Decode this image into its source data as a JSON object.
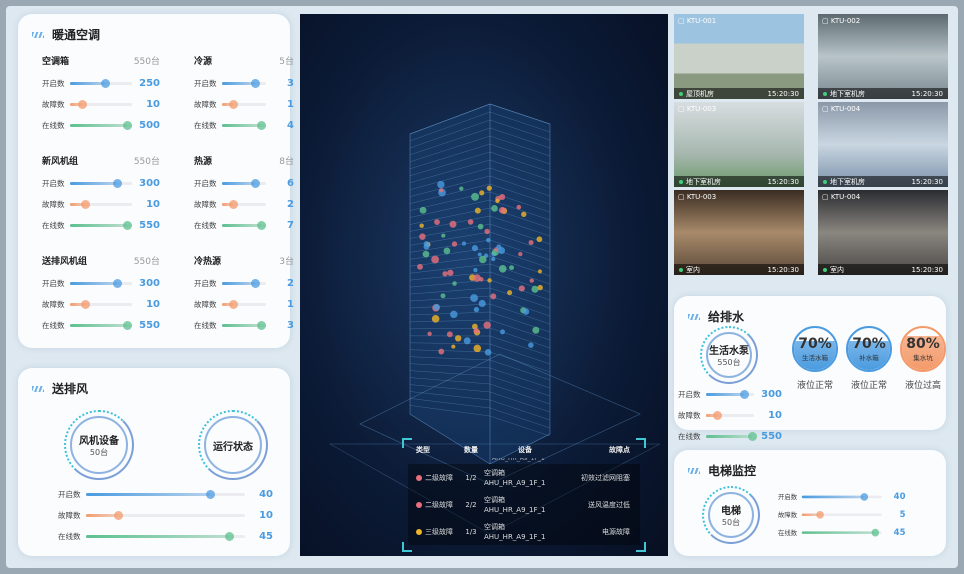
{
  "hvac": {
    "title": "暖通空调",
    "groups": [
      {
        "name": "空调箱",
        "total": "550台",
        "rows": [
          [
            "开启数",
            "250",
            0.57
          ],
          [
            "故障数",
            "10",
            0.2
          ],
          [
            "在线数",
            "500",
            0.92
          ]
        ]
      },
      {
        "name": "冷源",
        "total": "5台",
        "rows": [
          [
            "开启数",
            "3",
            0.75
          ],
          [
            "故障数",
            "1",
            0.24
          ],
          [
            "在线数",
            "4",
            0.88
          ]
        ]
      },
      {
        "name": "新风机组",
        "total": "550台",
        "rows": [
          [
            "开启数",
            "300",
            0.75
          ],
          [
            "故障数",
            "10",
            0.24
          ],
          [
            "在线数",
            "550",
            0.92
          ]
        ]
      },
      {
        "name": "热源",
        "total": "8台",
        "rows": [
          [
            "开启数",
            "6",
            0.75
          ],
          [
            "故障数",
            "2",
            0.24
          ],
          [
            "在线数",
            "7",
            0.88
          ]
        ]
      },
      {
        "name": "送排风机组",
        "total": "550台",
        "rows": [
          [
            "开启数",
            "300",
            0.75
          ],
          [
            "故障数",
            "10",
            0.24
          ],
          [
            "在线数",
            "550",
            0.92
          ]
        ]
      },
      {
        "name": "冷热源",
        "total": "3台",
        "rows": [
          [
            "开启数",
            "2",
            0.75
          ],
          [
            "故障数",
            "1",
            0.24
          ],
          [
            "在线数",
            "3",
            0.88
          ]
        ]
      }
    ]
  },
  "ventilation": {
    "title": "送排风",
    "ring1": {
      "name": "风机设备",
      "count": "50台"
    },
    "ring2": {
      "name": "运行状态"
    },
    "rows": [
      [
        "开启数",
        "40",
        0.78
      ],
      [
        "故障数",
        "10",
        0.2
      ],
      [
        "在线数",
        "45",
        0.9
      ]
    ]
  },
  "fault_table": {
    "headers": [
      "类型",
      "数量",
      "设备",
      "故障点"
    ],
    "clipped_row": "AHU_HR_A9_1F_1",
    "rows": [
      {
        "type": "二级故障",
        "color": "#e8707c",
        "count": "1/2",
        "device": "空调箱",
        "code": "AHU_HR_A9_1F_1",
        "point": "初效过滤网阻塞"
      },
      {
        "type": "二级故障",
        "color": "#e8707c",
        "count": "2/2",
        "device": "空调箱",
        "code": "AHU_HR_A9_1F_1",
        "point": "送风温度过低"
      },
      {
        "type": "三级故障",
        "color": "#f0b429",
        "count": "1/3",
        "device": "空调箱",
        "code": "AHU_HR_A9_1F_1",
        "point": "电源故障"
      }
    ]
  },
  "cameras": [
    {
      "id": "KTU-001",
      "location": "屋顶机房",
      "time": "15:20:30"
    },
    {
      "id": "KTU-002",
      "location": "地下室机房",
      "time": "15:20:30"
    },
    {
      "id": "KTU-003",
      "location": "地下室机房",
      "time": "15:20:30"
    },
    {
      "id": "KTU-004",
      "location": "地下室机房",
      "time": "15:20:30"
    },
    {
      "id": "KTU-003",
      "location": "室内",
      "time": "15:20:30"
    },
    {
      "id": "KTU-004",
      "location": "室内",
      "time": "15:20:30"
    }
  ],
  "water": {
    "title": "给排水",
    "ring": {
      "name": "生活水泵",
      "count": "550台"
    },
    "rows": [
      [
        "开启数",
        "300",
        0.8
      ],
      [
        "故障数",
        "10",
        0.22
      ],
      [
        "在线数",
        "550",
        0.95
      ]
    ],
    "tanks": [
      {
        "pct": "70%",
        "level": 0.7,
        "name": "生活水箱",
        "status": "液位正常",
        "color": "#4a9be0"
      },
      {
        "pct": "70%",
        "level": 0.7,
        "name": "补水箱",
        "status": "液位正常",
        "color": "#4a9be0"
      },
      {
        "pct": "80%",
        "level": 0.8,
        "name": "集水坑",
        "status": "液位过高",
        "color": "#f49a6a"
      }
    ]
  },
  "elevator": {
    "title": "电梯监控",
    "ring": {
      "name": "电梯",
      "count": "50台"
    },
    "rows": [
      [
        "开启数",
        "40",
        0.78
      ],
      [
        "故障数",
        "5",
        0.22
      ],
      [
        "在线数",
        "45",
        0.92
      ]
    ]
  },
  "colors": {
    "open": "#4a9be0",
    "fault": "#f49a6a",
    "online": "#5cc08e"
  }
}
